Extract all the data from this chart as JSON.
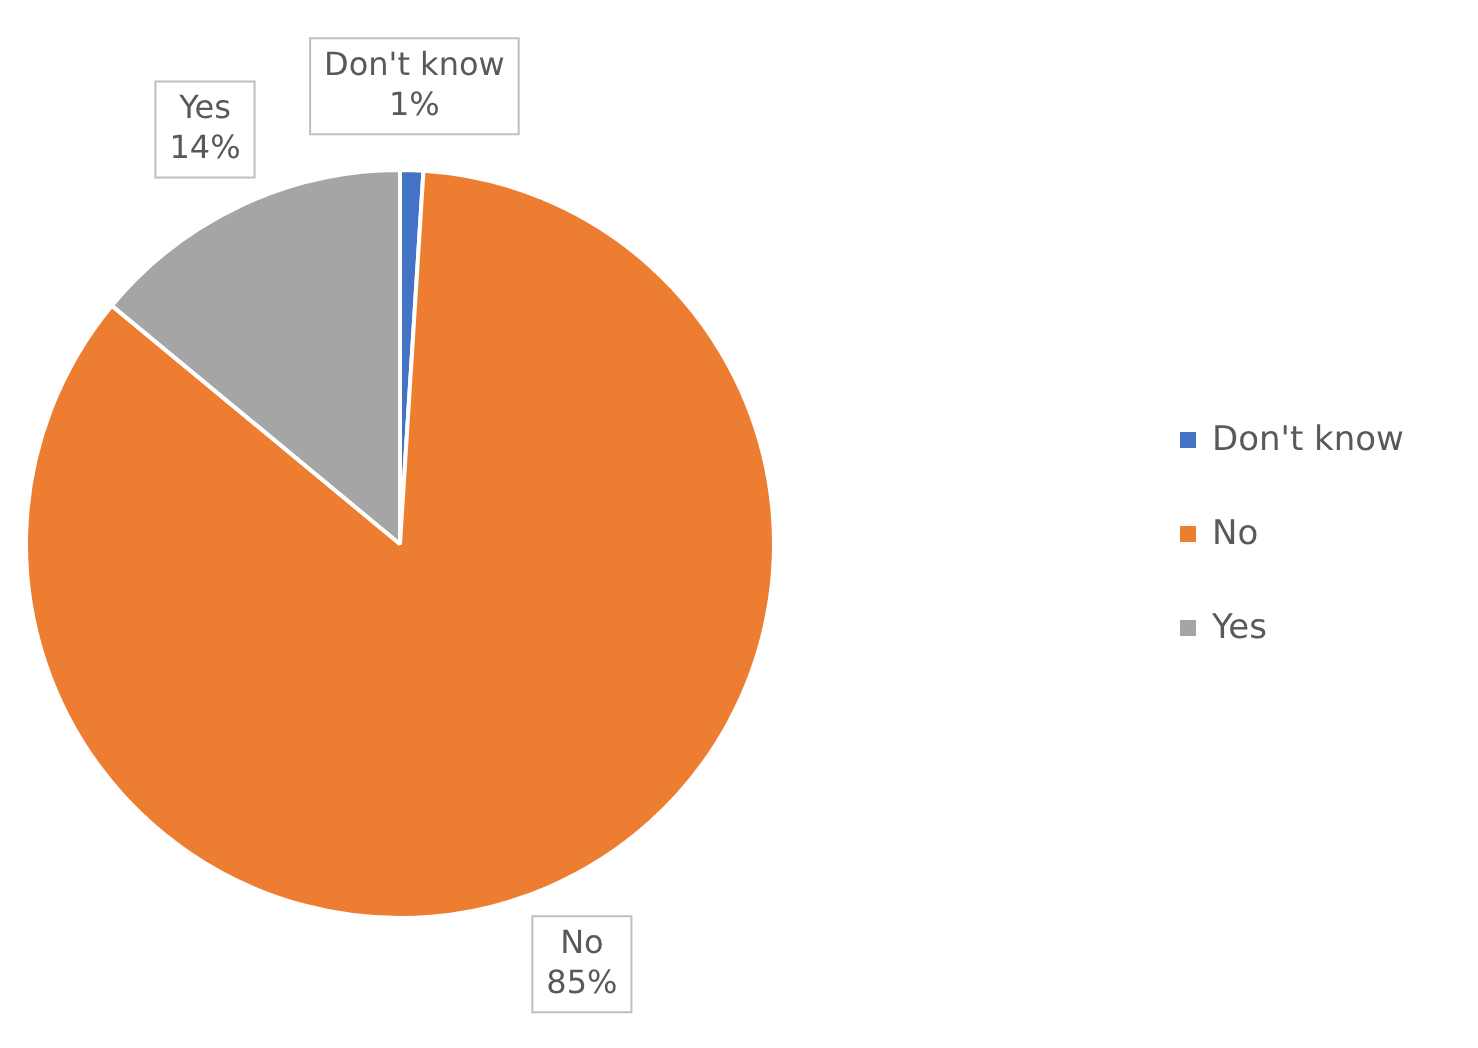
{
  "chart_data": {
    "type": "pie",
    "categories": [
      "Don't know",
      "No",
      "Yes"
    ],
    "values": [
      1,
      85,
      14
    ],
    "colors": [
      "#4472c4",
      "#ed7d31",
      "#a5a5a5"
    ],
    "value_labels": [
      "1%",
      "85%",
      "14%"
    ],
    "legend": "right"
  }
}
